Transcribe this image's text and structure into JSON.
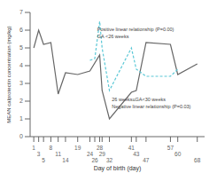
{
  "chart_data": {
    "type": "line",
    "xlabel": "Day of birth (day)",
    "ylabel": "MEAN calprotectin concentration (mg/kg)",
    "xlim": [
      -0.5,
      71
    ],
    "ylim": [
      0,
      7
    ],
    "xticks": [
      1,
      3,
      5,
      8,
      11,
      14,
      19,
      24,
      26,
      28,
      29,
      32,
      41,
      43,
      47,
      57,
      60,
      68
    ],
    "yticks": [
      0,
      1,
      2,
      3,
      4,
      5,
      6,
      7
    ],
    "series": [
      {
        "x": [
          1,
          3,
          5,
          8,
          11,
          14,
          19,
          24,
          28,
          29,
          32,
          41,
          43,
          47,
          57,
          60,
          68
        ],
        "values": [
          5.0,
          6.0,
          5.2,
          5.3,
          2.4,
          3.6,
          3.5,
          3.7,
          4.6,
          2.6,
          1.0,
          2.5,
          2.6,
          5.3,
          5.2,
          3.5,
          4.1
        ],
        "color": "#666666",
        "line_style": "solid"
      },
      {
        "x": [
          24,
          26,
          28,
          29,
          32,
          41,
          43,
          47,
          57,
          60
        ],
        "values": [
          4.3,
          4.4,
          6.5,
          5.0,
          2.6,
          5.0,
          3.8,
          3.4,
          3.4,
          3.8
        ],
        "color": "#5bc8d6",
        "line_style": "dashed"
      }
    ],
    "annotations": [
      {
        "text": "Positive linear relationship (P=0.00)\nGA <26 weeks",
        "x": 27,
        "y": 6.25
      },
      {
        "text": "26 weeks≤GA<30 weeks\nNegative linear relationship (P=0.03)",
        "x": 33,
        "y": 2.3
      }
    ]
  }
}
